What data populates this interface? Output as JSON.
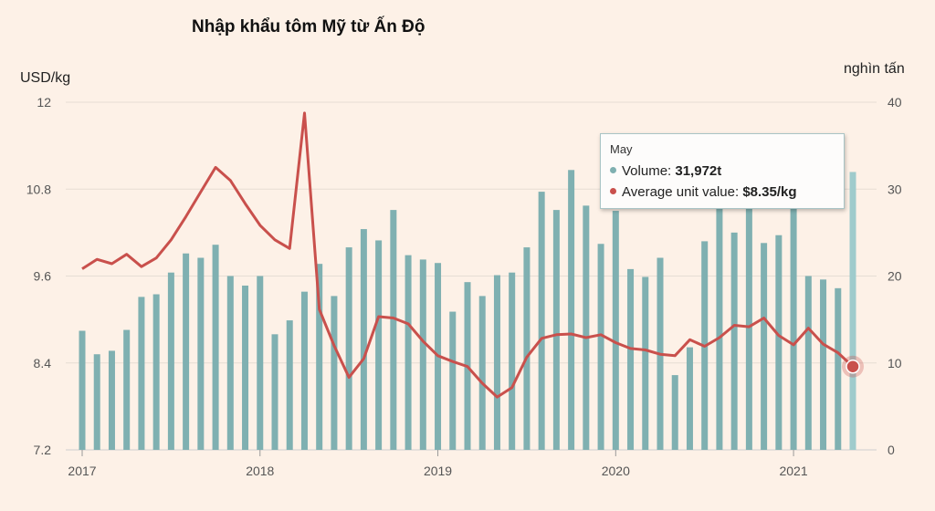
{
  "chart_data": {
    "type": "bar+line",
    "title": "Nhập khẩu tôm Mỹ từ Ấn Độ",
    "left_axis_label": "USD/kg",
    "right_axis_label": "nghìn tấn",
    "left_axis": {
      "min": 7.2,
      "max": 12,
      "ticks": [
        "12",
        "10.8",
        "9.6",
        "8.4",
        "7.2"
      ]
    },
    "right_axis": {
      "min": 0,
      "max": 40,
      "ticks": [
        "40",
        "30",
        "20",
        "10",
        "0"
      ]
    },
    "x_tick_labels": [
      "2017",
      "2018",
      "2019",
      "2020",
      "2021"
    ],
    "months": [
      "2017-01",
      "2017-02",
      "2017-03",
      "2017-04",
      "2017-05",
      "2017-06",
      "2017-07",
      "2017-08",
      "2017-09",
      "2017-10",
      "2017-11",
      "2017-12",
      "2018-01",
      "2018-02",
      "2018-03",
      "2018-04",
      "2018-05",
      "2018-06",
      "2018-07",
      "2018-08",
      "2018-09",
      "2018-10",
      "2018-11",
      "2018-12",
      "2019-01",
      "2019-02",
      "2019-03",
      "2019-04",
      "2019-05",
      "2019-06",
      "2019-07",
      "2019-08",
      "2019-09",
      "2019-10",
      "2019-11",
      "2019-12",
      "2020-01",
      "2020-02",
      "2020-03",
      "2020-04",
      "2020-05",
      "2020-06",
      "2020-07",
      "2020-08",
      "2020-09",
      "2020-10",
      "2020-11",
      "2020-12",
      "2021-01",
      "2021-02",
      "2021-03",
      "2021-04",
      "2021-05"
    ],
    "series": [
      {
        "name": "Volume",
        "type": "bar",
        "axis": "right",
        "color": "#7fb0b1",
        "values": [
          13.7,
          11.0,
          11.4,
          13.8,
          17.6,
          17.9,
          20.4,
          22.6,
          22.1,
          23.6,
          20.0,
          18.9,
          20.0,
          13.3,
          14.9,
          18.2,
          21.4,
          17.7,
          23.3,
          25.4,
          24.1,
          27.6,
          22.4,
          21.9,
          21.5,
          15.9,
          19.3,
          17.7,
          20.1,
          20.4,
          23.3,
          29.7,
          27.6,
          32.2,
          28.1,
          23.7,
          27.5,
          20.8,
          19.9,
          22.1,
          8.6,
          11.8,
          24.0,
          30.0,
          25.0,
          29.0,
          23.8,
          24.7,
          27.8,
          20.0,
          19.6,
          18.6,
          31.972
        ]
      },
      {
        "name": "Average unit value",
        "type": "line",
        "axis": "left",
        "color": "#c9504c",
        "values": [
          9.7,
          9.83,
          9.77,
          9.9,
          9.73,
          9.85,
          10.1,
          10.42,
          10.76,
          11.1,
          10.92,
          10.6,
          10.3,
          10.1,
          9.98,
          11.85,
          9.14,
          8.64,
          8.2,
          8.46,
          9.04,
          9.02,
          8.94,
          8.7,
          8.5,
          8.42,
          8.35,
          8.12,
          7.93,
          8.06,
          8.48,
          8.74,
          8.79,
          8.8,
          8.75,
          8.79,
          8.68,
          8.6,
          8.58,
          8.52,
          8.5,
          8.72,
          8.63,
          8.75,
          8.92,
          8.9,
          9.02,
          8.78,
          8.65,
          8.88,
          8.66,
          8.54,
          8.35
        ]
      }
    ],
    "grid": true,
    "highlight_index": 52
  },
  "tooltip": {
    "month": "May",
    "volume_label": "Volume:",
    "volume_value": "31,972t",
    "unit_label": "Average unit value:",
    "unit_value": "$8.35/kg",
    "volume_color": "#7fb0b1",
    "unit_color": "#c9504c"
  }
}
